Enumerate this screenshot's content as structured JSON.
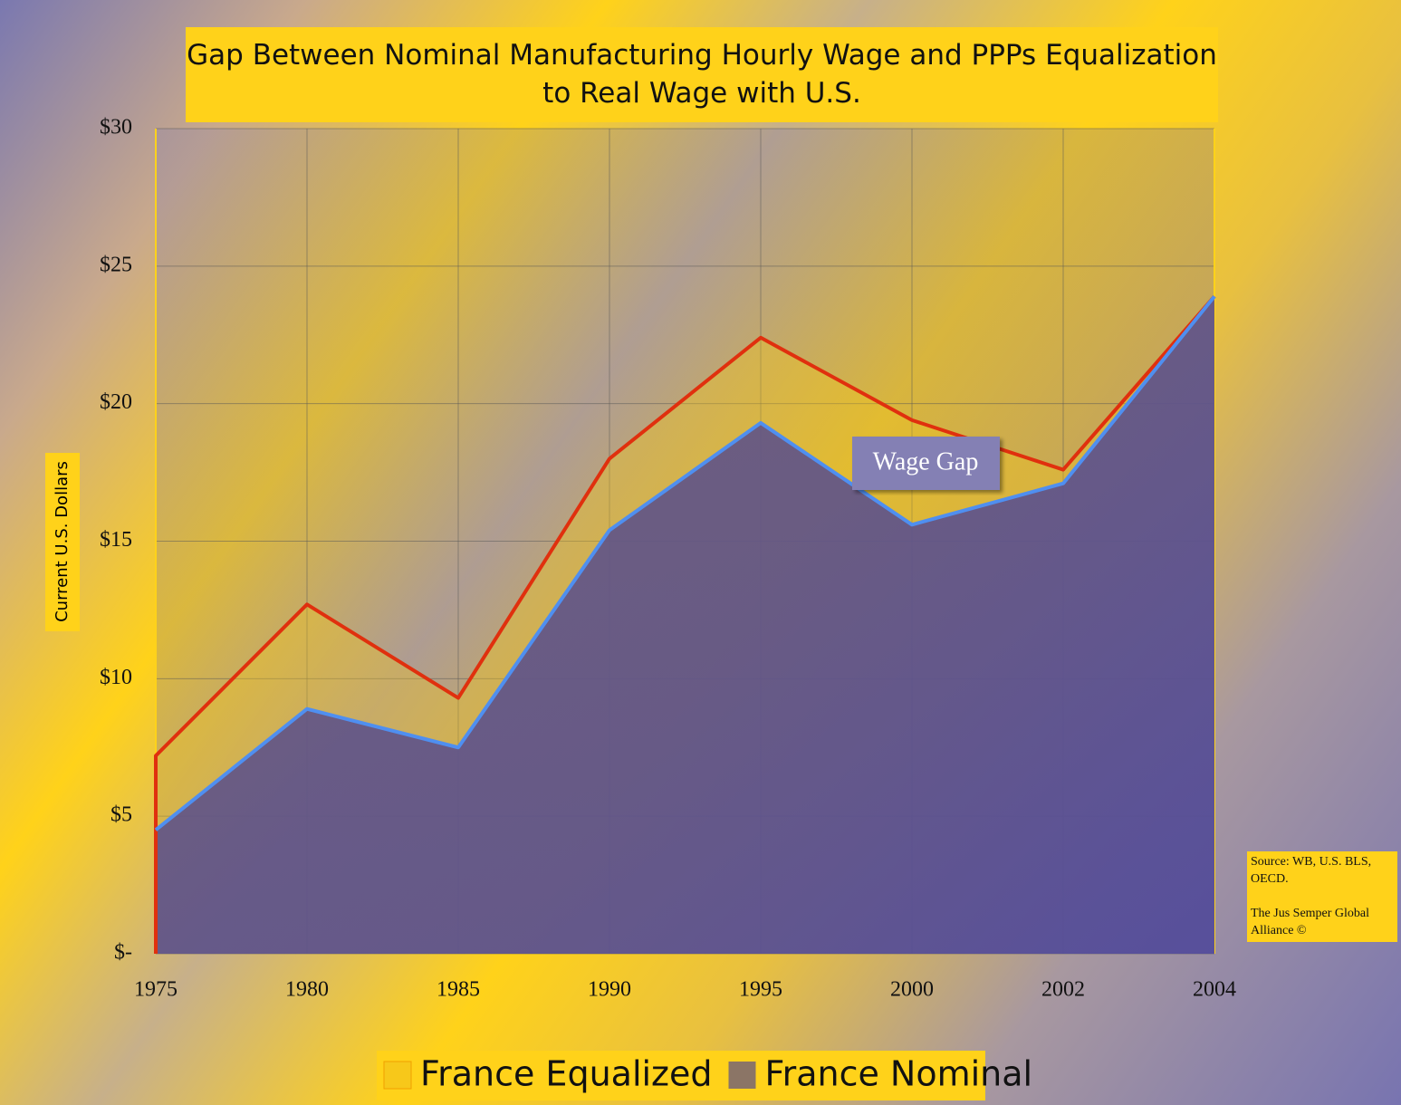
{
  "chart_data": {
    "type": "area",
    "title": "Gap Between Nominal Manufacturing Hourly Wage and PPPs Equalization to Real Wage with U.S.",
    "ylabel": "Current U.S. Dollars",
    "categories": [
      "1975",
      "1980",
      "1985",
      "1990",
      "1995",
      "2000",
      "2002",
      "2004"
    ],
    "series": [
      {
        "name": "France Equalized",
        "color": "#e0300e",
        "fill": "#f7c81a",
        "values": [
          7.2,
          12.7,
          9.3,
          18.0,
          22.4,
          19.4,
          17.6,
          23.9
        ]
      },
      {
        "name": "France Nominal",
        "color": "#4f8ff0",
        "fill": "#6a5a8a",
        "values": [
          4.5,
          8.9,
          7.5,
          15.4,
          19.3,
          15.6,
          17.1,
          23.9
        ]
      }
    ],
    "ylim": [
      0,
      30
    ],
    "yticks": [
      {
        "value": 0,
        "label": "$-"
      },
      {
        "value": 5,
        "label": "$5"
      },
      {
        "value": 10,
        "label": "$10"
      },
      {
        "value": 15,
        "label": "$15"
      },
      {
        "value": 20,
        "label": "$20"
      },
      {
        "value": 25,
        "label": "$25"
      },
      {
        "value": 30,
        "label": "$30"
      }
    ],
    "grid": true,
    "annotation": "Wage Gap",
    "source": [
      "Source: WB, U.S. BLS, OECD.",
      "The Jus Semper Global Alliance ©"
    ]
  }
}
